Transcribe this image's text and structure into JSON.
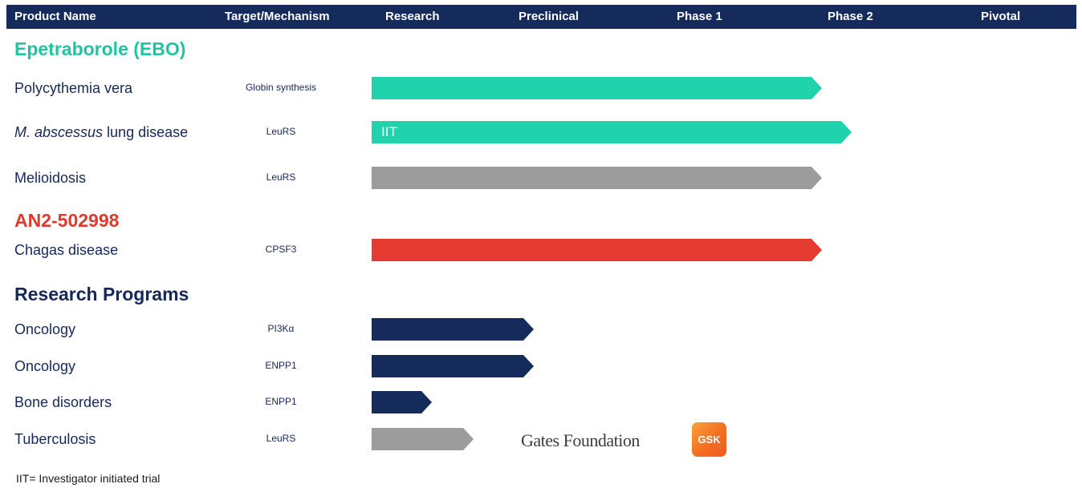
{
  "header": {
    "columns": [
      "Product Name",
      "Target/Mechanism",
      "Research",
      "Preclinical",
      "Phase 1",
      "Phase 2",
      "Pivotal"
    ]
  },
  "sections": [
    {
      "title": "Epetraborole (EBO)",
      "color": "#22c4a0"
    },
    {
      "title": "AN2-502998",
      "color": "#e03a30"
    },
    {
      "title": "Research Programs",
      "color": "#15285a"
    }
  ],
  "chart_data": {
    "type": "bar",
    "orientation": "horizontal",
    "stages": [
      "Research",
      "Preclinical",
      "Phase 1",
      "Phase 2",
      "Pivotal"
    ],
    "programs": [
      {
        "section": "Epetraborole (EBO)",
        "indication": "Polycythemia vera",
        "target": "Globin synthesis",
        "stage_reached": "Phase 2",
        "progress": 3.0,
        "color": "#21d3ad",
        "label": ""
      },
      {
        "section": "Epetraborole (EBO)",
        "indication": "M. abscessus lung disease",
        "indication_italic": "M. abscessus",
        "indication_rest": " lung disease",
        "target": "LeuRS",
        "stage_reached": "Phase 2",
        "progress": 3.2,
        "color": "#21d3ad",
        "label": "IIT"
      },
      {
        "section": "Epetraborole (EBO)",
        "indication": "Melioidosis",
        "target": "LeuRS",
        "stage_reached": "Phase 2",
        "progress": 3.0,
        "color": "#9c9c9c",
        "label": ""
      },
      {
        "section": "AN2-502998",
        "indication": "Chagas disease",
        "target": "CPSF3",
        "stage_reached": "Phase 2",
        "progress": 3.0,
        "color": "#e63b31",
        "label": ""
      },
      {
        "section": "Research Programs",
        "indication": "Oncology",
        "target": "PI3Kα",
        "stage_reached": "Preclinical",
        "progress": 1.08,
        "color": "#142b5c",
        "label": ""
      },
      {
        "section": "Research Programs",
        "indication": "Oncology",
        "target": "ENPP1",
        "stage_reached": "Preclinical",
        "progress": 1.08,
        "color": "#142b5c",
        "label": ""
      },
      {
        "section": "Research Programs",
        "indication": "Bone disorders",
        "target": "ENPP1",
        "stage_reached": "Research",
        "progress": 0.4,
        "color": "#142b5c",
        "label": ""
      },
      {
        "section": "Research Programs",
        "indication": "Tuberculosis",
        "target": "LeuRS",
        "stage_reached": "Research",
        "progress": 0.68,
        "color": "#9c9c9c",
        "label": ""
      }
    ]
  },
  "partners": {
    "gates": "Gates Foundation",
    "gsk": "GSK",
    "gsk_colors": [
      "#f8a23a",
      "#ee5a1e"
    ]
  },
  "footnote": "IIT= Investigator initiated trial"
}
